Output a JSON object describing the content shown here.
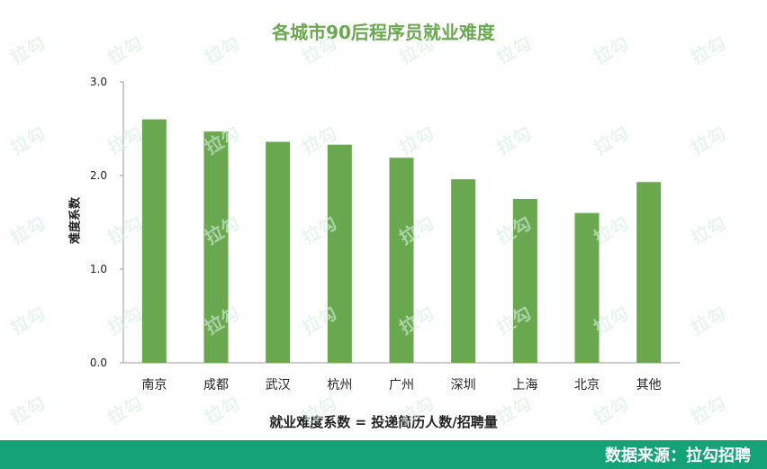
{
  "chart_data": {
    "type": "bar",
    "title": "各城市90后程序员就业难度",
    "xlabel": "就业难度系数 = 投递简历人数/招聘量",
    "ylabel": "难度系数",
    "categories": [
      "南京",
      "成都",
      "武汉",
      "杭州",
      "广州",
      "深圳",
      "上海",
      "北京",
      "其他"
    ],
    "values": [
      2.6,
      2.47,
      2.36,
      2.33,
      2.19,
      1.96,
      1.75,
      1.6,
      1.93
    ],
    "ylim": [
      0,
      3
    ],
    "yticks": [
      "0.0",
      "1.0",
      "2.0",
      "3.0"
    ],
    "bar_color": "#6aa84f",
    "grid": false
  },
  "footer": {
    "source": "数据来源：拉勾招聘",
    "background_color": "#13a376"
  },
  "watermark": {
    "text": "拉勾"
  }
}
